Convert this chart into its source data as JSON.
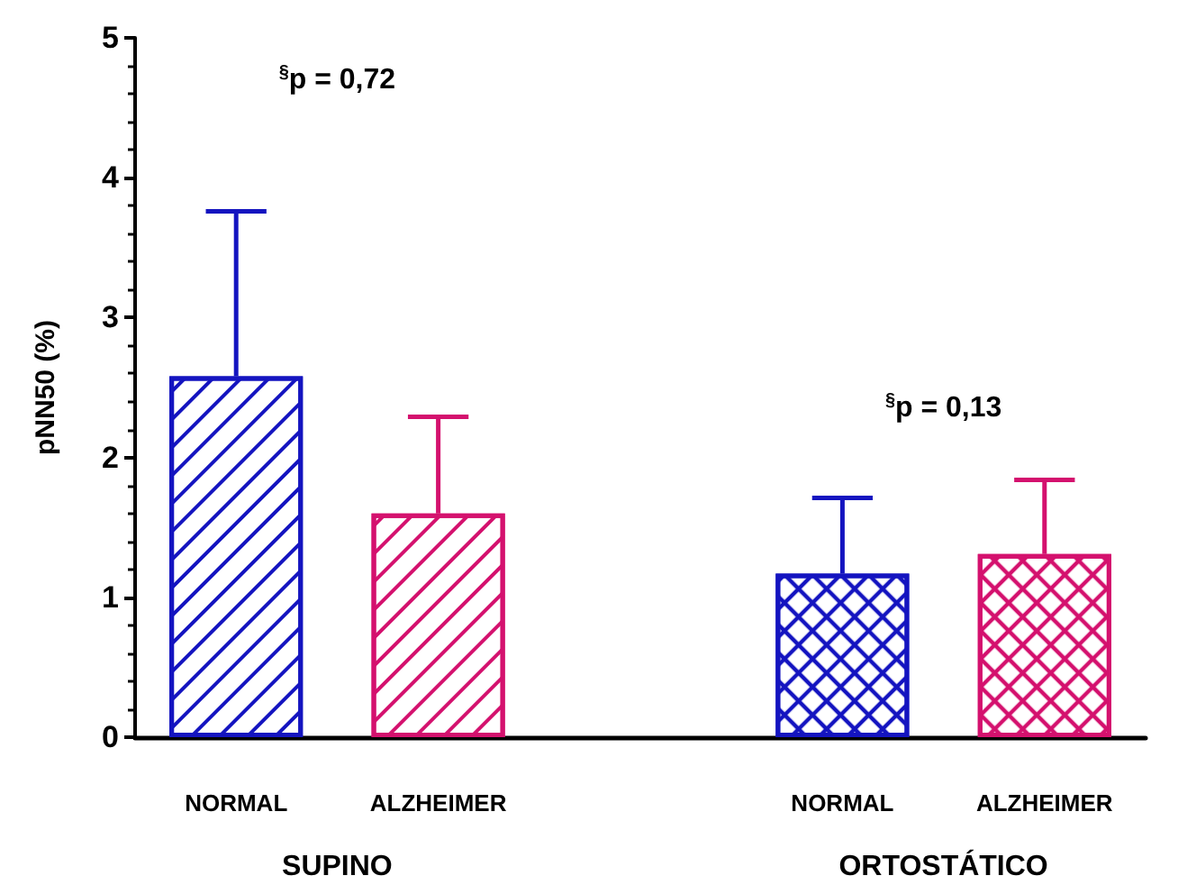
{
  "chart_data": {
    "type": "bar",
    "ylabel": "pNN50 (%)",
    "categories": [
      "NORMAL",
      "ALZHEIMER",
      null,
      "NORMAL",
      "ALZHEIMER"
    ],
    "values": [
      2.58,
      1.6,
      null,
      1.17,
      1.31
    ],
    "colors": [
      "#1414c0",
      "#d4116e",
      null,
      "#1414c0",
      "#d4116e"
    ],
    "errors": [
      [
        2.58,
        3.76
      ],
      [
        1.6,
        2.29
      ],
      null,
      [
        1.17,
        1.71
      ],
      [
        1.31,
        1.84
      ]
    ],
    "ylim": [
      0,
      5
    ],
    "yticks": [
      0,
      1,
      2,
      3,
      4,
      5
    ],
    "grid": false,
    "annotations": [
      "$^{§}$p = 0,72",
      "$^{§}$p = 0,13",
      "SUPINO",
      "ORTOSTÁTICO"
    ]
  }
}
